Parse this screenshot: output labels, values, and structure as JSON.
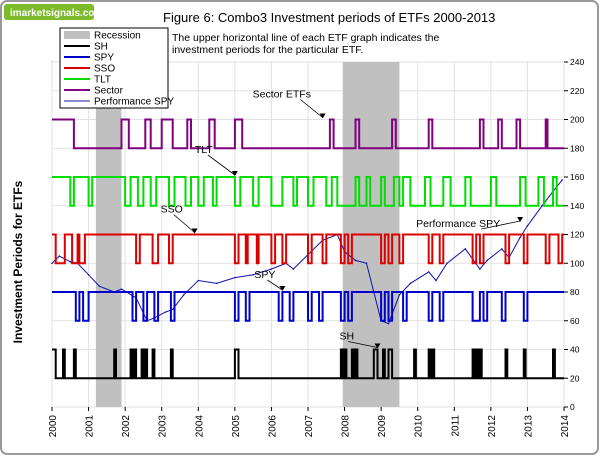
{
  "watermark": "imarketsignals.com",
  "chart_data": {
    "type": "line",
    "title": "Figure 6: Combo3 Investment periods of ETFs      2000-2013",
    "subtitle_lines": [
      "The upper horizontal line of each ETF graph indicates the",
      "investment periods for the particular ETF."
    ],
    "ylabel": "Investment Periods for ETFs",
    "x_ticks": [
      "2000",
      "2001",
      "2002",
      "2003",
      "2004",
      "2005",
      "2006",
      "2007",
      "2008",
      "2009",
      "2010",
      "2011",
      "2012",
      "2013",
      "2014"
    ],
    "xlim": [
      2000,
      2014
    ],
    "y_ticks": [
      "0",
      "20",
      "40",
      "60",
      "80",
      "100",
      "120",
      "140",
      "160",
      "180",
      "200",
      "220",
      "240"
    ],
    "ylim": [
      0,
      240
    ],
    "grid": true,
    "legend_position": "top-left",
    "recessions": [
      [
        2001.2,
        2001.9
      ],
      [
        2007.95,
        2009.5
      ]
    ],
    "legend": [
      {
        "name": "Recession",
        "color": "#c0c0c0",
        "kind": "box"
      },
      {
        "name": "SH",
        "color": "#000000",
        "kind": "line"
      },
      {
        "name": "SPY",
        "color": "#0000cc",
        "kind": "line"
      },
      {
        "name": "SSO",
        "color": "#dd0000",
        "kind": "line"
      },
      {
        "name": "TLT",
        "color": "#00dd00",
        "kind": "line"
      },
      {
        "name": "Sector",
        "color": "#800080",
        "kind": "line"
      },
      {
        "name": "Performance SPY",
        "color": "#1010aa",
        "kind": "thinline"
      }
    ],
    "signal_series": [
      {
        "name": "Sector",
        "color": "#800080",
        "low": 180,
        "high": 200,
        "switches": [
          2000,
          2000.6,
          2001.9,
          2002.1,
          2002.55,
          2002.7,
          2003.0,
          2003.3,
          2003.7,
          2003.8,
          2004.3,
          2004.45,
          2005.0,
          2005.2,
          2007.6,
          2007.7,
          2008.3,
          2008.4,
          2009.3,
          2009.4,
          2010.3,
          2010.4,
          2011.7,
          2011.8,
          2012.2,
          2012.3,
          2012.7,
          2012.8,
          2013.5,
          2013.55
        ]
      },
      {
        "name": "TLT",
        "color": "#00dd00",
        "low": 140,
        "high": 160,
        "switches": [
          2000,
          2000.5,
          2000.6,
          2001.0,
          2001.1,
          2002.0,
          2002.15,
          2002.35,
          2002.5,
          2002.7,
          2002.85,
          2003.2,
          2003.35,
          2003.65,
          2003.8,
          2004.0,
          2004.15,
          2004.4,
          2004.5,
          2005.0,
          2005.15,
          2005.5,
          2005.65,
          2006.0,
          2006.3,
          2006.6,
          2006.7,
          2007.0,
          2007.15,
          2007.5,
          2007.65,
          2007.8,
          2008.3,
          2008.4,
          2008.6,
          2008.7,
          2009.0,
          2009.1,
          2009.35,
          2009.5,
          2009.6,
          2009.8,
          2010.2,
          2010.35,
          2010.7,
          2010.9,
          2011.3,
          2011.45,
          2012.0,
          2012.15,
          2012.8,
          2012.95,
          2013.3,
          2013.45,
          2013.7,
          2013.8
        ]
      },
      {
        "name": "SSO",
        "color": "#dd0000",
        "low": 100,
        "high": 120,
        "switches": [
          2000,
          2000.1,
          2000.35,
          2000.55,
          2000.7,
          2000.75,
          2000.9,
          2002.3,
          2002.4,
          2002.75,
          2002.9,
          2003.2,
          2003.3,
          2005.0,
          2005.1,
          2005.3,
          2005.35,
          2005.6,
          2005.65,
          2006.0,
          2006.1,
          2006.3,
          2006.4,
          2007.0,
          2007.1,
          2007.4,
          2007.5,
          2007.9,
          2008.0,
          2008.1,
          2008.2,
          2009.0,
          2009.1,
          2009.2,
          2009.3,
          2009.5,
          2009.6,
          2010.3,
          2010.4,
          2010.6,
          2010.7,
          2011.5,
          2011.6,
          2011.7,
          2011.8,
          2012.4,
          2012.5,
          2012.9,
          2013.0,
          2013.5,
          2013.6,
          2013.85,
          2013.95
        ]
      },
      {
        "name": "SPY",
        "color": "#0000cc",
        "low": 60,
        "high": 80,
        "switches": [
          2000,
          2000.65,
          2000.75,
          2000.85,
          2001.0,
          2002.2,
          2002.3,
          2002.5,
          2002.6,
          2002.8,
          2002.9,
          2003.25,
          2003.35,
          2005.0,
          2005.1,
          2005.3,
          2005.4,
          2006.2,
          2006.3,
          2006.5,
          2006.6,
          2007.0,
          2007.1,
          2007.3,
          2007.4,
          2007.9,
          2008.0,
          2008.1,
          2008.2,
          2009.0,
          2009.1,
          2009.2,
          2009.3,
          2009.6,
          2009.7,
          2010.3,
          2010.4,
          2010.6,
          2010.7,
          2011.5,
          2011.7,
          2011.8,
          2011.9,
          2012.3,
          2012.4,
          2012.9,
          2013.0
        ]
      },
      {
        "name": "SH",
        "color": "#000000",
        "low": 20,
        "high": 40,
        "switches": [
          2000,
          2000.1,
          2000.3,
          2000.35,
          2000.6,
          2000.65,
          2001.7,
          2001.75,
          2002.15,
          2002.2,
          2002.25,
          2002.3,
          2002.45,
          2002.5,
          2002.55,
          2002.6,
          2002.75,
          2002.8,
          2003.25,
          2003.3,
          2005.0,
          2005.1,
          2007.9,
          2007.95,
          2008.0,
          2008.05,
          2008.2,
          2008.25,
          2008.3,
          2008.35,
          2008.8,
          2008.9,
          2009.05,
          2009.1,
          2009.2,
          2009.3,
          2009.9,
          2009.95,
          2010.3,
          2010.35,
          2010.4,
          2010.45,
          2011.5,
          2011.55,
          2011.6,
          2011.65,
          2011.7,
          2011.75,
          2012.4,
          2012.45,
          2012.9,
          2012.95,
          2013.7,
          2013.75
        ]
      }
    ],
    "performance_series": {
      "name": "Performance SPY",
      "color": "#1010aa",
      "x": [
        2000.0,
        2000.2,
        2000.5,
        2000.7,
        2001.0,
        2001.3,
        2001.7,
        2001.9,
        2002.3,
        2002.6,
        2002.8,
        2003.1,
        2003.3,
        2003.6,
        2004.0,
        2004.5,
        2005.0,
        2005.5,
        2006.0,
        2006.4,
        2006.6,
        2007.0,
        2007.4,
        2007.8,
        2008.0,
        2008.3,
        2008.6,
        2008.8,
        2009.0,
        2009.2,
        2009.5,
        2009.8,
        2010.3,
        2010.5,
        2010.8,
        2011.3,
        2011.7,
        2011.9,
        2012.3,
        2012.5,
        2012.8,
        2013.0,
        2013.4,
        2013.7,
        2013.95
      ],
      "y": [
        100,
        105,
        101,
        100,
        92,
        84,
        80,
        82,
        76,
        60,
        62,
        66,
        68,
        78,
        88,
        86,
        90,
        92,
        96,
        100,
        96,
        106,
        116,
        120,
        108,
        102,
        100,
        80,
        60,
        58,
        78,
        86,
        94,
        88,
        100,
        110,
        96,
        102,
        110,
        104,
        118,
        126,
        140,
        150,
        158
      ]
    },
    "annotations": [
      {
        "text": "Sector ETFs",
        "value": [
          2007.4,
          200
        ]
      },
      {
        "text": "TLT",
        "value": [
          2005.0,
          160
        ]
      },
      {
        "text": "SSO",
        "value": [
          2003.9,
          120
        ]
      },
      {
        "text": "SPY",
        "value": [
          2006.3,
          80
        ]
      },
      {
        "text": "Performance SPY",
        "value": [
          2012.8,
          128
        ]
      },
      {
        "text": "SH",
        "value": [
          2008.9,
          40
        ]
      }
    ]
  }
}
